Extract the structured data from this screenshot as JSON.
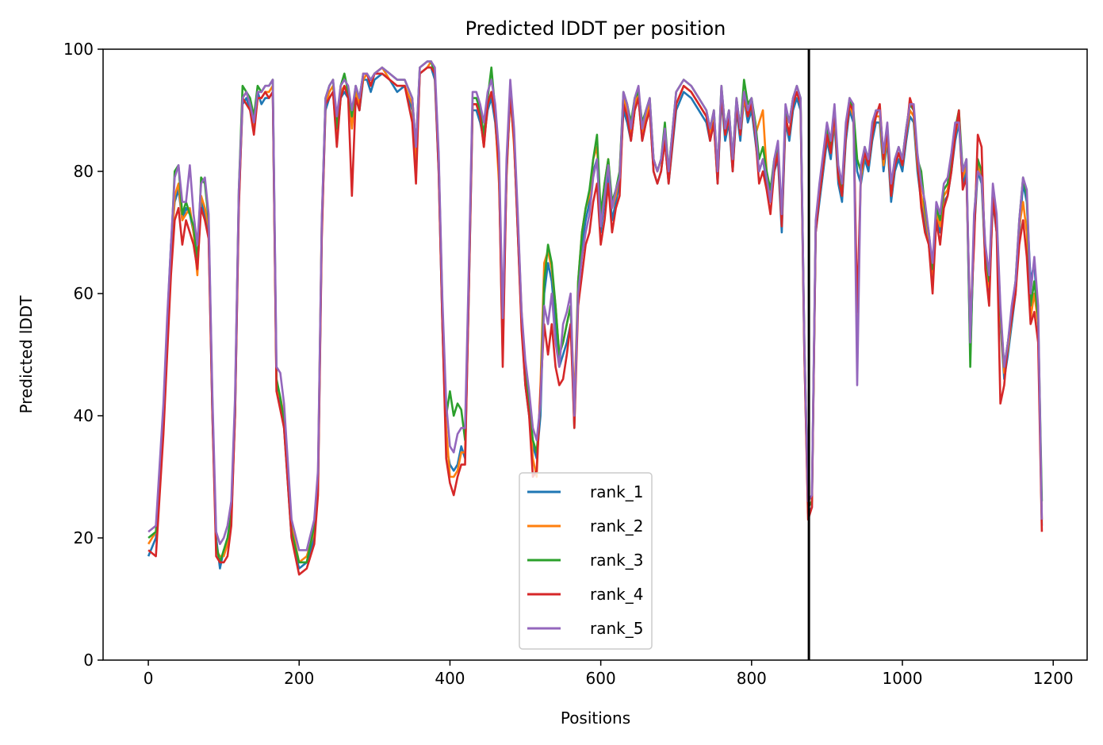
{
  "chart_data": {
    "type": "line",
    "title": "Predicted lDDT per position",
    "xlabel": "Positions",
    "ylabel": "Predicted lDDT",
    "xlim": [
      -60,
      1245
    ],
    "ylim": [
      0,
      100
    ],
    "xticks": [
      0,
      200,
      400,
      600,
      800,
      1000,
      1200
    ],
    "yticks": [
      0,
      20,
      40,
      60,
      80,
      100
    ],
    "grid": false,
    "legend_position": "lower-center",
    "vline": {
      "x": 876,
      "color": "#000000"
    },
    "x": [
      0,
      10,
      20,
      25,
      30,
      35,
      40,
      45,
      50,
      55,
      60,
      65,
      70,
      75,
      80,
      85,
      90,
      95,
      100,
      105,
      110,
      115,
      120,
      125,
      130,
      135,
      140,
      145,
      150,
      155,
      160,
      165,
      170,
      175,
      180,
      190,
      200,
      210,
      220,
      225,
      230,
      235,
      240,
      245,
      250,
      255,
      260,
      265,
      270,
      275,
      280,
      285,
      290,
      295,
      300,
      310,
      320,
      330,
      340,
      350,
      355,
      360,
      370,
      375,
      380,
      385,
      390,
      395,
      400,
      405,
      410,
      415,
      420,
      425,
      430,
      435,
      440,
      445,
      450,
      455,
      460,
      465,
      470,
      475,
      480,
      485,
      490,
      495,
      500,
      505,
      510,
      515,
      520,
      525,
      530,
      535,
      540,
      545,
      550,
      555,
      560,
      565,
      570,
      575,
      580,
      585,
      590,
      595,
      600,
      605,
      610,
      615,
      620,
      625,
      630,
      635,
      640,
      645,
      650,
      655,
      660,
      665,
      670,
      675,
      680,
      685,
      690,
      700,
      710,
      720,
      730,
      740,
      745,
      750,
      755,
      760,
      765,
      770,
      775,
      780,
      785,
      790,
      795,
      800,
      805,
      810,
      815,
      820,
      825,
      830,
      835,
      840,
      845,
      850,
      855,
      860,
      865,
      870,
      875,
      880,
      885,
      890,
      895,
      900,
      905,
      910,
      915,
      920,
      925,
      930,
      935,
      940,
      945,
      950,
      955,
      960,
      965,
      970,
      975,
      980,
      985,
      990,
      995,
      1000,
      1005,
      1010,
      1015,
      1020,
      1025,
      1030,
      1035,
      1040,
      1045,
      1050,
      1055,
      1060,
      1065,
      1070,
      1075,
      1080,
      1085,
      1090,
      1095,
      1100,
      1105,
      1110,
      1115,
      1120,
      1125,
      1130,
      1135,
      1140,
      1145,
      1150,
      1155,
      1160,
      1165,
      1170,
      1175,
      1180,
      1185
    ],
    "series": [
      {
        "name": "rank_1",
        "color": "#1f77b4",
        "values": [
          17,
          20,
          40,
          55,
          68,
          75,
          77,
          72,
          74,
          73,
          70,
          66,
          75,
          73,
          70,
          40,
          20,
          15,
          18,
          19,
          23,
          40,
          75,
          91,
          92,
          90,
          88,
          93,
          91,
          92,
          92,
          93,
          45,
          42,
          38,
          20,
          15,
          16,
          20,
          28,
          70,
          90,
          92,
          93,
          85,
          92,
          93,
          92,
          88,
          92,
          90,
          95,
          95,
          93,
          95,
          96,
          95,
          93,
          94,
          90,
          80,
          96,
          97,
          97,
          95,
          80,
          55,
          35,
          32,
          31,
          32,
          35,
          33,
          60,
          90,
          90,
          88,
          85,
          90,
          92,
          88,
          80,
          50,
          80,
          92,
          85,
          70,
          55,
          45,
          40,
          35,
          33,
          40,
          60,
          65,
          62,
          55,
          48,
          50,
          52,
          55,
          40,
          60,
          68,
          72,
          75,
          80,
          82,
          70,
          75,
          80,
          72,
          75,
          78,
          90,
          88,
          85,
          90,
          92,
          85,
          88,
          90,
          80,
          78,
          80,
          85,
          78,
          90,
          93,
          92,
          90,
          88,
          85,
          88,
          78,
          92,
          85,
          88,
          80,
          90,
          85,
          92,
          88,
          90,
          85,
          80,
          82,
          78,
          75,
          80,
          82,
          70,
          88,
          85,
          90,
          92,
          90,
          50,
          24,
          25,
          70,
          75,
          80,
          85,
          82,
          88,
          78,
          75,
          85,
          90,
          88,
          80,
          78,
          82,
          80,
          85,
          88,
          88,
          80,
          85,
          75,
          80,
          82,
          80,
          85,
          89,
          88,
          80,
          75,
          72,
          68,
          62,
          72,
          70,
          75,
          76,
          80,
          85,
          88,
          78,
          80,
          50,
          70,
          80,
          78,
          65,
          60,
          75,
          70,
          55,
          46,
          50,
          55,
          60,
          70,
          78,
          75,
          62,
          65,
          55,
          22
        ]
      },
      {
        "name": "rank_2",
        "color": "#ff7f0e",
        "values": [
          19,
          21,
          38,
          52,
          65,
          76,
          78,
          72,
          73,
          74,
          70,
          63,
          76,
          74,
          71,
          42,
          18,
          17,
          17,
          19,
          24,
          42,
          76,
          92,
          93,
          91,
          87,
          92,
          92,
          93,
          93,
          94,
          44,
          43,
          40,
          22,
          16,
          17,
          21,
          30,
          72,
          91,
          93,
          94,
          86,
          93,
          94,
          93,
          87,
          93,
          91,
          95,
          96,
          94,
          96,
          97,
          95,
          94,
          94,
          91,
          82,
          96,
          97,
          98,
          96,
          82,
          58,
          38,
          30,
          30,
          31,
          34,
          34,
          62,
          91,
          91,
          89,
          84,
          91,
          93,
          89,
          78,
          55,
          79,
          93,
          84,
          72,
          57,
          46,
          42,
          33,
          30,
          45,
          65,
          67,
          64,
          58,
          50,
          52,
          55,
          58,
          42,
          62,
          70,
          74,
          76,
          82,
          84,
          72,
          78,
          82,
          74,
          76,
          80,
          92,
          90,
          86,
          91,
          93,
          86,
          89,
          91,
          82,
          80,
          82,
          86,
          80,
          91,
          94,
          93,
          91,
          89,
          86,
          89,
          79,
          93,
          86,
          89,
          81,
          91,
          86,
          92,
          89,
          91,
          86,
          88,
          90,
          80,
          76,
          81,
          84,
          72,
          89,
          86,
          91,
          93,
          91,
          51,
          25,
          26,
          71,
          76,
          81,
          86,
          83,
          89,
          79,
          76,
          86,
          91,
          89,
          56,
          79,
          83,
          81,
          86,
          89,
          89,
          81,
          86,
          76,
          81,
          83,
          81,
          86,
          90,
          89,
          81,
          76,
          73,
          69,
          63,
          73,
          71,
          76,
          77,
          81,
          86,
          89,
          79,
          81,
          51,
          71,
          81,
          79,
          66,
          61,
          76,
          71,
          56,
          47,
          51,
          56,
          61,
          71,
          75,
          70,
          56,
          60,
          55,
          23
        ]
      },
      {
        "name": "rank_3",
        "color": "#2ca02c",
        "values": [
          20,
          21,
          39,
          54,
          67,
          80,
          81,
          73,
          75,
          73,
          71,
          65,
          79,
          78,
          72,
          41,
          19,
          16,
          18,
          20,
          24,
          41,
          77,
          94,
          93,
          92,
          89,
          94,
          93,
          94,
          94,
          95,
          46,
          43,
          39,
          21,
          16,
          16,
          22,
          29,
          71,
          92,
          94,
          95,
          87,
          94,
          96,
          93,
          89,
          94,
          92,
          96,
          96,
          95,
          96,
          97,
          96,
          95,
          95,
          92,
          84,
          97,
          98,
          98,
          96,
          82,
          57,
          40,
          44,
          40,
          42,
          41,
          36,
          62,
          92,
          92,
          90,
          86,
          92,
          97,
          90,
          81,
          54,
          80,
          94,
          86,
          71,
          56,
          47,
          42,
          36,
          34,
          42,
          62,
          68,
          65,
          58,
          50,
          52,
          55,
          58,
          38,
          62,
          70,
          74,
          77,
          82,
          86,
          73,
          78,
          82,
          75,
          77,
          80,
          93,
          91,
          88,
          92,
          93,
          88,
          90,
          92,
          82,
          80,
          82,
          88,
          80,
          93,
          95,
          94,
          92,
          90,
          87,
          90,
          80,
          94,
          87,
          90,
          82,
          92,
          87,
          95,
          91,
          92,
          88,
          82,
          84,
          80,
          77,
          82,
          84,
          72,
          90,
          88,
          92,
          94,
          92,
          52,
          25,
          26,
          71,
          77,
          82,
          87,
          84,
          90,
          80,
          77,
          87,
          92,
          90,
          82,
          80,
          84,
          82,
          87,
          90,
          90,
          82,
          87,
          77,
          82,
          84,
          82,
          87,
          91,
          90,
          82,
          80,
          74,
          70,
          64,
          74,
          72,
          77,
          78,
          82,
          87,
          90,
          80,
          82,
          48,
          72,
          82,
          80,
          67,
          62,
          77,
          72,
          57,
          48,
          52,
          57,
          62,
          72,
          79,
          76,
          58,
          62,
          56,
          26
        ]
      },
      {
        "name": "rank_4",
        "color": "#d62728",
        "values": [
          18,
          17,
          37,
          50,
          63,
          72,
          74,
          68,
          72,
          70,
          68,
          64,
          74,
          72,
          69,
          40,
          17,
          16,
          16,
          17,
          22,
          40,
          74,
          92,
          91,
          90,
          86,
          92,
          92,
          93,
          92,
          93,
          44,
          41,
          38,
          20,
          14,
          15,
          19,
          27,
          69,
          91,
          92,
          93,
          84,
          92,
          94,
          92,
          76,
          92,
          90,
          96,
          96,
          94,
          96,
          96,
          95,
          94,
          94,
          88,
          78,
          96,
          97,
          97,
          96,
          80,
          55,
          33,
          29,
          27,
          30,
          32,
          32,
          60,
          91,
          91,
          89,
          84,
          91,
          93,
          89,
          80,
          48,
          80,
          93,
          85,
          70,
          54,
          45,
          40,
          30,
          31,
          44,
          55,
          50,
          55,
          48,
          45,
          46,
          50,
          55,
          38,
          58,
          63,
          68,
          70,
          75,
          78,
          68,
          72,
          78,
          70,
          74,
          76,
          91,
          89,
          85,
          90,
          92,
          85,
          88,
          90,
          80,
          78,
          80,
          85,
          78,
          91,
          94,
          93,
          91,
          89,
          85,
          88,
          78,
          93,
          86,
          89,
          80,
          91,
          86,
          93,
          89,
          91,
          86,
          78,
          80,
          77,
          73,
          80,
          83,
          71,
          89,
          86,
          91,
          93,
          91,
          50,
          23,
          25,
          70,
          76,
          81,
          86,
          83,
          90,
          79,
          76,
          86,
          91,
          90,
          57,
          80,
          83,
          81,
          86,
          89,
          91,
          82,
          87,
          76,
          81,
          83,
          81,
          86,
          92,
          90,
          82,
          74,
          70,
          68,
          60,
          72,
          68,
          74,
          76,
          80,
          86,
          90,
          77,
          79,
          55,
          68,
          86,
          84,
          64,
          58,
          76,
          70,
          42,
          45,
          52,
          56,
          60,
          68,
          72,
          66,
          55,
          57,
          52,
          21
        ]
      },
      {
        "name": "rank_5",
        "color": "#9467bd",
        "values": [
          21,
          22,
          42,
          56,
          68,
          79,
          81,
          75,
          75,
          81,
          73,
          68,
          78,
          79,
          73,
          43,
          21,
          19,
          20,
          22,
          26,
          43,
          77,
          92,
          93,
          91,
          88,
          93,
          93,
          94,
          94,
          95,
          48,
          47,
          42,
          23,
          18,
          18,
          23,
          31,
          72,
          92,
          94,
          95,
          89,
          94,
          95,
          94,
          90,
          94,
          92,
          96,
          96,
          95,
          96,
          97,
          96,
          95,
          95,
          92,
          84,
          97,
          98,
          98,
          97,
          83,
          59,
          42,
          35,
          34,
          37,
          38,
          38,
          64,
          93,
          93,
          91,
          88,
          93,
          95,
          91,
          83,
          56,
          82,
          95,
          87,
          73,
          57,
          49,
          44,
          38,
          36,
          42,
          58,
          55,
          60,
          52,
          48,
          55,
          57,
          60,
          40,
          60,
          66,
          70,
          73,
          79,
          82,
          71,
          76,
          81,
          74,
          77,
          79,
          93,
          91,
          87,
          92,
          94,
          87,
          90,
          92,
          82,
          80,
          82,
          87,
          80,
          93,
          95,
          94,
          92,
          90,
          87,
          90,
          80,
          94,
          87,
          90,
          82,
          92,
          87,
          93,
          90,
          92,
          87,
          80,
          82,
          79,
          75,
          82,
          85,
          73,
          91,
          88,
          92,
          94,
          92,
          52,
          26,
          27,
          72,
          78,
          83,
          88,
          85,
          91,
          81,
          78,
          88,
          92,
          91,
          45,
          81,
          84,
          82,
          88,
          90,
          90,
          83,
          88,
          78,
          82,
          84,
          82,
          87,
          91,
          91,
          83,
          78,
          75,
          70,
          65,
          75,
          73,
          78,
          79,
          83,
          88,
          88,
          80,
          82,
          52,
          73,
          80,
          79,
          68,
          63,
          78,
          73,
          58,
          48,
          52,
          58,
          62,
          72,
          79,
          77,
          60,
          66,
          58,
          23
        ]
      }
    ]
  }
}
